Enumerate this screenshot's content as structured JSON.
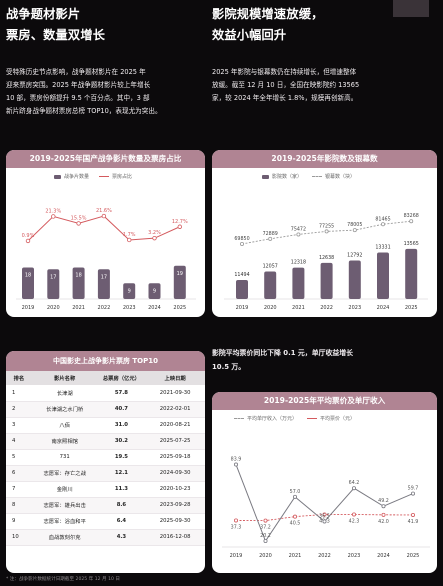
{
  "left": {
    "heading": [
      "战争题材影片",
      "票房、数量双增长"
    ],
    "paragraph": [
      "受特殊历史节点影响，战争题材影片在 2025 年",
      "迎来票房突围。2025 年战争题材影片较上年增长",
      "10 部，票房份额提升 9.5 个百分点。其中，3 部",
      "新片跻身战争题材票房总榜 TOP10，表现尤为突出。"
    ]
  },
  "right": {
    "heading": [
      "影院规模增速放缓，",
      "效益小幅回升"
    ],
    "paragraph": [
      "2025 年影院与银幕数仍在持续增长，但增速整体",
      "放缓。截至 12 月 10 日，全国在映影院约 13565",
      "家，较 2024 年全年增长 1.8%，规模再创新高。"
    ],
    "paragraph2": [
      "影院平均票价同比下降 0.1 元，单厅收益增长",
      "10.5 万。"
    ]
  },
  "chart_data": [
    {
      "type": "bar",
      "title": "2019-2025年国产战争影片数量及票房占比",
      "categories": [
        "2019",
        "2020",
        "2021",
        "2022",
        "2023",
        "2024",
        "2025"
      ],
      "series": [
        {
          "name": "战争片数量",
          "type": "bar",
          "values": [
            18,
            17,
            18,
            17,
            9,
            9,
            19
          ]
        },
        {
          "name": "票房占比",
          "type": "line",
          "values": [
            0.9,
            21.3,
            15.5,
            21.6,
            1.7,
            3.2,
            12.7
          ],
          "labels": [
            "0.9%",
            "21.3%",
            "15.5%",
            "21.6%",
            "1.7%",
            "3.2%",
            "12.7%"
          ]
        }
      ]
    },
    {
      "type": "bar",
      "title": "2019-2025年影院数及银幕数",
      "categories": [
        "2019",
        "2020",
        "2021",
        "2022",
        "2023",
        "2024",
        "2025"
      ],
      "series": [
        {
          "name": "影院数（家）",
          "type": "bar",
          "values": [
            11494,
            12057,
            12318,
            12638,
            12792,
            13331,
            13565
          ]
        },
        {
          "name": "银幕数（块）",
          "type": "line",
          "values": [
            69850,
            72889,
            75472,
            77255,
            78005,
            81465,
            83268
          ]
        }
      ]
    },
    {
      "type": "line",
      "title": "2019-2025年平均票价及单厅收入",
      "categories": [
        "2019",
        "2020",
        "2021",
        "2022",
        "2023",
        "2024",
        "2025"
      ],
      "series": [
        {
          "name": "平均单厅收入（万元）",
          "values": [
            83.9,
            20.2,
            57.0,
            36.5,
            64.2,
            49.2,
            59.7
          ]
        },
        {
          "name": "平均票价（元）",
          "values": [
            37.3,
            37.2,
            40.5,
            42.3,
            42.3,
            42.0,
            41.9
          ]
        }
      ]
    }
  ],
  "table": {
    "title": "中国影史上战争影片票房 TOP10",
    "headers": [
      "排名",
      "影片名称",
      "总票房（亿元）",
      "上映日期"
    ],
    "rows": [
      [
        "1",
        "长津湖",
        "57.8",
        "2021-09-30"
      ],
      [
        "2",
        "长津湖之水门桥",
        "40.7",
        "2022-02-01"
      ],
      [
        "3",
        "八佰",
        "31.0",
        "2020-08-21"
      ],
      [
        "4",
        "南京照相馆",
        "30.2",
        "2025-07-25"
      ],
      [
        "5",
        "731",
        "19.5",
        "2025-09-18"
      ],
      [
        "6",
        "志愿军：存亡之战",
        "12.1",
        "2024-09-30"
      ],
      [
        "7",
        "金刚川",
        "11.3",
        "2020-10-23"
      ],
      [
        "8",
        "志愿军：雄兵出击",
        "8.6",
        "2023-09-28"
      ],
      [
        "9",
        "志愿军：浴血和平",
        "6.4",
        "2025-09-30"
      ],
      [
        "10",
        "血战敦刻尔克",
        "4.3",
        "2016-12-08"
      ]
    ]
  },
  "footnote": "* 注：战争影片数据统计日期截至 2025 年 12 月 10 日",
  "colors": {
    "background": "#0c0a0c",
    "panel_header": "#b08493",
    "bar": "#6d5d72",
    "line_red": "#d45a5e",
    "line_gray": "#9a9a9a"
  }
}
